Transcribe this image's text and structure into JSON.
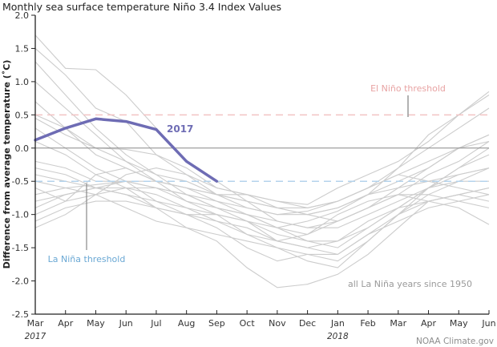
{
  "chart_data": {
    "type": "line",
    "title": "Monthly sea surface temperature Niño 3.4 Index Values",
    "xlabel": "",
    "ylabel": "Difference from average temperature (˚C)",
    "x": [
      "Mar",
      "Apr",
      "May",
      "Jun",
      "Jul",
      "Aug",
      "Sep",
      "Oct",
      "Nov",
      "Dec",
      "Jan",
      "Feb",
      "Mar",
      "Apr",
      "May",
      "Jun"
    ],
    "year_labels": [
      {
        "index": 0,
        "label": "2017"
      },
      {
        "index": 10,
        "label": "2018"
      }
    ],
    "ylim": [
      -2.5,
      2.0
    ],
    "yticks": [
      2.0,
      1.5,
      1.0,
      0.5,
      0.0,
      -0.5,
      -1.0,
      -1.5,
      -2.0,
      -2.5
    ],
    "ytick_labels": [
      "2.0",
      "1.5",
      "1.0",
      "0.5",
      "0.0",
      "-0.5",
      "-1.0",
      "-1.5",
      "-2.0",
      "-2.5"
    ],
    "grid": false,
    "thresholds": [
      {
        "name": "El Niño threshold",
        "value": 0.5,
        "color": "#f2c4c4"
      },
      {
        "name": "La Niña threshold",
        "value": -0.5,
        "color": "#b4d3ec"
      }
    ],
    "zero_line": {
      "value": 0.0,
      "color": "#888888"
    },
    "series": [
      {
        "name": "2017",
        "color": "#6e6cb4",
        "values": [
          0.12,
          0.3,
          0.44,
          0.4,
          0.28,
          -0.2,
          -0.5,
          null,
          null,
          null,
          null,
          null,
          null,
          null,
          null,
          null
        ]
      },
      {
        "name": "La Niña year 1",
        "color": "#cccccc",
        "values": [
          1.7,
          1.2,
          1.18,
          0.8,
          0.3,
          -0.2,
          -0.5,
          -0.8,
          -1.1,
          -1.2,
          -1.1,
          -0.9,
          -0.7,
          -0.4,
          -0.2,
          0.1
        ]
      },
      {
        "name": "La Niña year 2",
        "color": "#cccccc",
        "values": [
          1.5,
          1.1,
          0.6,
          0.4,
          -0.1,
          -0.4,
          -0.7,
          -0.9,
          -1.0,
          -0.95,
          -0.8,
          -0.6,
          -0.3,
          0.0,
          0.3,
          0.6
        ]
      },
      {
        "name": "La Niña year 3",
        "color": "#cccccc",
        "values": [
          1.3,
          0.8,
          0.3,
          -0.1,
          -0.4,
          -0.7,
          -0.9,
          -1.1,
          -1.4,
          -1.5,
          -1.4,
          -1.2,
          -0.9,
          -0.6,
          -0.3,
          -0.1
        ]
      },
      {
        "name": "La Niña year 4",
        "color": "#cccccc",
        "values": [
          1.0,
          0.6,
          0.2,
          -0.2,
          -0.5,
          -0.8,
          -1.0,
          -1.3,
          -1.5,
          -1.6,
          -1.7,
          -1.4,
          -1.0,
          -0.7,
          -0.5,
          -0.3
        ]
      },
      {
        "name": "La Niña year 5",
        "color": "#cccccc",
        "values": [
          0.5,
          0.3,
          0.0,
          -0.2,
          -0.4,
          -0.5,
          -0.7,
          -0.8,
          -0.9,
          -1.0,
          -0.9,
          -0.7,
          -0.5,
          -0.3,
          0.0,
          0.2
        ]
      },
      {
        "name": "La Niña year 6",
        "color": "#cccccc",
        "values": [
          0.45,
          0.2,
          0.0,
          -0.02,
          -0.1,
          -0.3,
          -0.6,
          -0.7,
          -0.8,
          -0.85,
          -0.6,
          -0.4,
          -0.2,
          0.1,
          0.5,
          0.8
        ]
      },
      {
        "name": "La Niña year 7",
        "color": "#cccccc",
        "values": [
          0.3,
          0.0,
          -0.3,
          -0.5,
          -0.8,
          -1.0,
          -1.2,
          -1.5,
          -1.7,
          -1.6,
          -1.6,
          -1.3,
          -1.0,
          -0.6,
          -0.4,
          -0.3
        ]
      },
      {
        "name": "La Niña year 8",
        "color": "#cccccc",
        "values": [
          0.1,
          -0.1,
          -0.4,
          -0.6,
          -0.9,
          -1.2,
          -1.4,
          -1.8,
          -2.1,
          -2.05,
          -1.9,
          -1.6,
          -1.2,
          -0.8,
          -0.7,
          -0.6
        ]
      },
      {
        "name": "La Niña year 9",
        "color": "#cccccc",
        "values": [
          -0.2,
          -0.3,
          -0.5,
          -0.5,
          -0.6,
          -0.7,
          -0.8,
          -0.9,
          -1.0,
          -1.0,
          -0.9,
          -0.7,
          -0.6,
          -0.5,
          -0.4,
          -0.3
        ]
      },
      {
        "name": "La Niña year 10",
        "color": "#cccccc",
        "values": [
          -0.3,
          -0.4,
          -0.6,
          -0.7,
          -0.8,
          -0.9,
          -1.0,
          -1.1,
          -1.3,
          -1.4,
          -1.4,
          -1.1,
          -0.9,
          -0.8,
          -0.7,
          -0.6
        ]
      },
      {
        "name": "La Niña year 11",
        "color": "#cccccc",
        "values": [
          -0.5,
          -0.6,
          -0.55,
          -0.5,
          -0.6,
          -0.8,
          -0.9,
          -1.0,
          -1.2,
          -1.4,
          -1.5,
          -1.2,
          -0.9,
          -0.6,
          -0.3,
          0.0
        ]
      },
      {
        "name": "La Niña year 12",
        "color": "#cccccc",
        "values": [
          -0.6,
          -0.8,
          -0.4,
          -0.3,
          -0.5,
          -0.6,
          -0.7,
          -0.8,
          -0.9,
          -0.9,
          -0.8,
          -0.6,
          -0.4,
          -0.2,
          0.0,
          0.1
        ]
      },
      {
        "name": "La Niña year 13",
        "color": "#cccccc",
        "values": [
          -0.7,
          -0.6,
          -0.7,
          -0.9,
          -1.1,
          -1.2,
          -1.3,
          -1.4,
          -1.5,
          -1.7,
          -1.8,
          -1.4,
          -1.0,
          -0.8,
          -0.7,
          -0.8
        ]
      },
      {
        "name": "La Niña year 14",
        "color": "#cccccc",
        "values": [
          -0.8,
          -0.7,
          -0.6,
          -0.7,
          -0.9,
          -1.0,
          -1.0,
          -1.1,
          -1.2,
          -1.3,
          -1.0,
          -0.8,
          -0.7,
          -0.8,
          -0.9,
          -1.15
        ]
      },
      {
        "name": "La Niña year 15",
        "color": "#cccccc",
        "values": [
          -0.9,
          -0.7,
          -0.6,
          -0.5,
          -0.5,
          -0.6,
          -0.7,
          -0.7,
          -0.8,
          -0.9,
          -0.8,
          -0.6,
          -0.4,
          -0.5,
          -0.6,
          -0.7
        ]
      },
      {
        "name": "La Niña year 16",
        "color": "#cccccc",
        "values": [
          -1.0,
          -0.8,
          -0.7,
          -0.6,
          -0.6,
          -0.7,
          -0.9,
          -1.0,
          -1.1,
          -1.2,
          -1.2,
          -1.0,
          -0.8,
          -0.6,
          -0.5,
          -0.5
        ]
      },
      {
        "name": "La Niña year 17",
        "color": "#cccccc",
        "values": [
          -1.1,
          -0.9,
          -0.8,
          -0.8,
          -0.9,
          -1.0,
          -1.1,
          -1.3,
          -1.4,
          -1.3,
          -1.1,
          -0.9,
          -0.7,
          -0.7,
          -0.8,
          -0.9
        ]
      },
      {
        "name": "La Niña year 18",
        "color": "#cccccc",
        "values": [
          -1.2,
          -1.0,
          -0.7,
          -0.4,
          -0.3,
          -0.4,
          -0.6,
          -0.7,
          -0.9,
          -1.0,
          -1.1,
          -0.9,
          -0.6,
          -0.3,
          0.0,
          0.2
        ]
      },
      {
        "name": "La Niña year 19",
        "color": "#cccccc",
        "values": [
          0.7,
          0.3,
          -0.1,
          -0.3,
          -0.5,
          -0.6,
          -0.8,
          -1.0,
          -1.2,
          -1.1,
          -0.95,
          -0.7,
          -0.3,
          0.2,
          0.5,
          0.85
        ]
      },
      {
        "name": "La Niña year 20",
        "color": "#cccccc",
        "values": [
          -0.4,
          -0.5,
          -0.6,
          -0.6,
          -0.7,
          -0.9,
          -1.1,
          -1.2,
          -1.4,
          -1.5,
          -1.6,
          -1.3,
          -1.1,
          -0.9,
          -0.8,
          -0.7
        ]
      }
    ],
    "annotations": {
      "el_nino": "El Niño threshold",
      "la_nina": "La Niña threshold",
      "series_2017": "2017",
      "grey_lines": "all La Niña years since 1950"
    }
  },
  "credit": "NOAA Climate.gov"
}
